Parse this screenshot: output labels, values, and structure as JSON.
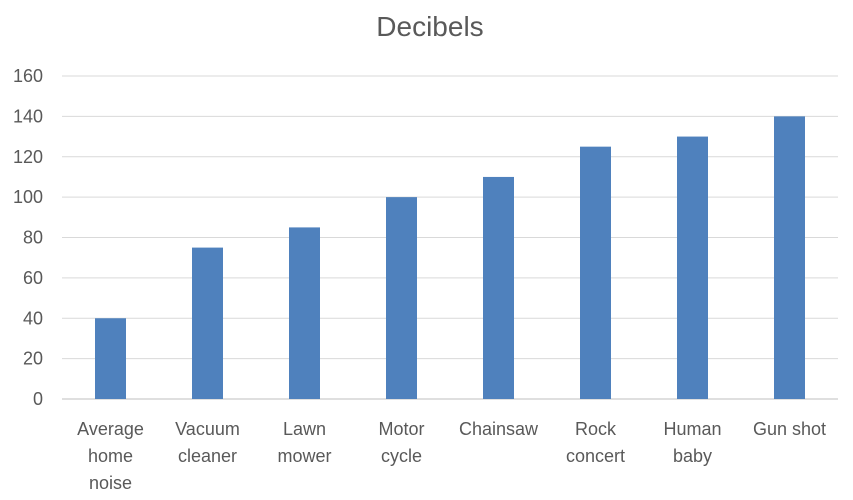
{
  "chart_data": {
    "type": "bar",
    "title": "Decibels",
    "categories": [
      [
        "Average",
        "home",
        "noise"
      ],
      [
        "Vacuum",
        "cleaner"
      ],
      [
        "Lawn",
        "mower"
      ],
      [
        "Motor",
        "cycle"
      ],
      [
        "Chainsaw"
      ],
      [
        "Rock",
        "concert"
      ],
      [
        "Human",
        "baby"
      ],
      [
        "Gun shot"
      ]
    ],
    "values": [
      40,
      75,
      85,
      100,
      110,
      125,
      130,
      140
    ],
    "ylim": [
      0,
      160
    ],
    "yticks": [
      "0",
      "20",
      "40",
      "60",
      "80",
      "100",
      "120",
      "140",
      "160"
    ],
    "grid": true,
    "legend": "none",
    "bar_color": "#4f81bd"
  }
}
